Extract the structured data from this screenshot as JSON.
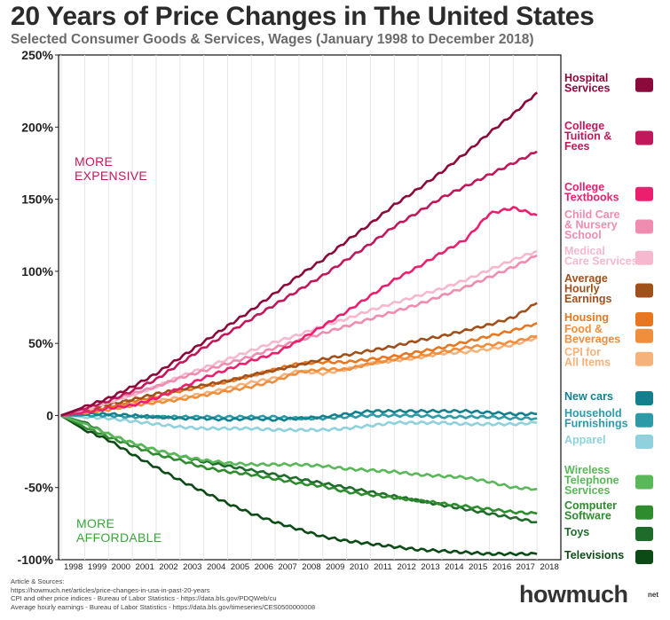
{
  "header": {
    "title": "20 Years of Price Changes in The United States",
    "subtitle": "Selected Consumer Goods & Services, Wages (January 1998 to December 2018)"
  },
  "footer": {
    "sources": [
      "Article & Sources:",
      "https://howmuch.net/articles/price-changes-in-usa-in-past-20-years",
      "CPI and other price indices - Bureau of Labor Statistics - https://data.bls.gov/PDQWeb/cu",
      "Average hourly earnings - Bureau of Labor Statistics - https://data.bls.gov/timeseries/CES0500000008"
    ],
    "logo": "howmuch",
    "logo_suffix": "net"
  },
  "chart_data": {
    "type": "line",
    "x": [
      1998,
      1999,
      2000,
      2001,
      2002,
      2003,
      2004,
      2005,
      2006,
      2007,
      2008,
      2009,
      2010,
      2011,
      2012,
      2013,
      2014,
      2015,
      2016,
      2017,
      2018
    ],
    "x_tick_labels": [
      "1998",
      "1999",
      "2000",
      "2001",
      "2002",
      "2003",
      "2004",
      "2005",
      "2006",
      "2007",
      "2008",
      "2009",
      "2010",
      "2011",
      "2012",
      "2013",
      "2014",
      "2015",
      "2016",
      "2017",
      "2018"
    ],
    "y_ticks": [
      {
        "value": 250,
        "label": "250%"
      },
      {
        "value": 200,
        "label": "200%"
      },
      {
        "value": 150,
        "label": "150%"
      },
      {
        "value": 100,
        "label": "100%"
      },
      {
        "value": 50,
        "label": "50%"
      },
      {
        "value": 0,
        "label": "0"
      },
      {
        "value": -50,
        "label": "-50%"
      },
      {
        "value": -100,
        "label": "-100%"
      }
    ],
    "ylim": [
      -100,
      250
    ],
    "xlim": [
      1997.9,
      2019.0
    ],
    "grid": "vertical",
    "annotations": [
      {
        "text": [
          "MORE",
          "EXPENSIVE"
        ],
        "color": "#c2185b"
      },
      {
        "text": [
          "MORE",
          "AFFORDABLE"
        ],
        "color": "#3aa53a"
      }
    ],
    "series": [
      {
        "name": "Hospital Services",
        "label_lines": [
          "Hospital",
          "Services"
        ],
        "icon": "heart-pulse-icon",
        "color": "#8b0a3c",
        "values": [
          0,
          6,
          12,
          20,
          29,
          40,
          51,
          62,
          73,
          85,
          97,
          108,
          121,
          133,
          146,
          157,
          169,
          182,
          196,
          209,
          224
        ]
      },
      {
        "name": "College Tuition & Fees",
        "label_lines": [
          "College",
          "Tuition &",
          "Fees"
        ],
        "icon": "graduation-cap-icon",
        "color": "#c2185b",
        "values": [
          0,
          5,
          10,
          17,
          25,
          36,
          47,
          57,
          67,
          77,
          87,
          97,
          108,
          119,
          131,
          141,
          151,
          159,
          167,
          175,
          183
        ]
      },
      {
        "name": "College Textbooks",
        "label_lines": [
          "College",
          "Textbooks"
        ],
        "icon": "books-icon",
        "color": "#ec1f6f",
        "values": [
          0,
          2,
          5,
          7,
          12,
          19,
          26,
          32,
          38,
          43,
          52,
          62,
          72,
          83,
          94,
          103,
          113,
          122,
          140,
          144,
          139
        ]
      },
      {
        "name": "Child Care & Nursery School",
        "label_lines": [
          "Child Care",
          "& Nursery",
          "School"
        ],
        "icon": "family-icon",
        "color": "#f08cb0",
        "values": [
          0,
          5,
          10,
          15,
          20,
          26,
          31,
          36,
          41,
          47,
          52,
          57,
          62,
          67,
          72,
          77,
          83,
          89,
          96,
          103,
          111
        ]
      },
      {
        "name": "Medical Care Services",
        "label_lines": [
          "Medical",
          "Care Services"
        ],
        "icon": "medical-plus-icon",
        "color": "#f6b8cf",
        "values": [
          0,
          4,
          9,
          14,
          20,
          27,
          33,
          39,
          45,
          51,
          56,
          62,
          67,
          73,
          78,
          83,
          88,
          94,
          101,
          108,
          114
        ]
      },
      {
        "name": "Average Hourly Earnings",
        "label_lines": [
          "Average",
          "Hourly",
          "Earnings"
        ],
        "icon": "clock-dollar-icon",
        "color": "#a0501a",
        "values": [
          0,
          3.5,
          7.5,
          11,
          15,
          18,
          21,
          24,
          28,
          31.5,
          35,
          39,
          42,
          45,
          48,
          52,
          55,
          59,
          63,
          68,
          78
        ]
      },
      {
        "name": "Housing",
        "label_lines": [
          "Housing"
        ],
        "icon": "house-icon",
        "color": "#e87722",
        "values": [
          0,
          2.5,
          6,
          10,
          13,
          17,
          20,
          23.5,
          27.5,
          32,
          36,
          37,
          37,
          39,
          41,
          44,
          47,
          51,
          55,
          59,
          64
        ]
      },
      {
        "name": "Food & Beverages",
        "label_lines": [
          "Food &",
          "Beverages"
        ],
        "icon": "food-icon",
        "color": "#f08e3c",
        "values": [
          0,
          2,
          4,
          7,
          9,
          11,
          14,
          17,
          20,
          24,
          30,
          32,
          32,
          36,
          39,
          41,
          44,
          47,
          49,
          51,
          55
        ]
      },
      {
        "name": "CPI for All Items",
        "label_lines": [
          "CPI for",
          "All Items"
        ],
        "icon": "price-tag-icon",
        "color": "#f5b27a",
        "values": [
          0,
          2,
          5,
          8,
          10,
          12.5,
          15,
          19,
          23,
          26,
          31,
          29,
          32,
          36,
          38,
          40,
          43,
          44,
          46,
          49,
          54
        ]
      },
      {
        "name": "New cars",
        "label_lines": [
          "New cars"
        ],
        "icon": "car-icon",
        "color": "#15808d",
        "values": [
          0,
          1,
          1,
          0,
          -1,
          -2,
          -2,
          -3,
          -2,
          -3,
          -2,
          -1,
          1,
          3,
          3,
          3,
          3,
          3,
          2,
          1,
          1
        ]
      },
      {
        "name": "Household Furnishings",
        "label_lines": [
          "Household",
          "Furnishings"
        ],
        "icon": "furniture-icon",
        "color": "#2d9aa8",
        "values": [
          0,
          0,
          0,
          -1,
          -1,
          -1,
          -1,
          -1,
          -1,
          -1,
          -2,
          -2,
          -1,
          0,
          0,
          0,
          -1,
          -1,
          -1,
          -2,
          -2
        ]
      },
      {
        "name": "Apparel",
        "label_lines": [
          "Apparel"
        ],
        "icon": "shirt-icon",
        "color": "#8fd1dc",
        "values": [
          0,
          -1,
          -2,
          -4,
          -6,
          -8,
          -9,
          -9,
          -9,
          -10,
          -10,
          -10,
          -9,
          -7,
          -5,
          -5,
          -5,
          -6,
          -6,
          -6,
          -5
        ]
      },
      {
        "name": "Wireless Telephone Services",
        "label_lines": [
          "Wireless",
          "Telephone",
          "Services"
        ],
        "icon": "phone-wifi-icon",
        "color": "#5ab75a",
        "values": [
          0,
          -6,
          -13,
          -19,
          -24,
          -28,
          -31,
          -33,
          -34,
          -34,
          -34,
          -35,
          -37,
          -38,
          -39,
          -41,
          -42,
          -43,
          -46,
          -50,
          -51
        ]
      },
      {
        "name": "Computer Software",
        "label_lines": [
          "Computer",
          "Software"
        ],
        "icon": "computer-icon",
        "color": "#2e8b2e",
        "values": [
          0,
          -8,
          -15,
          -21,
          -27,
          -31,
          -36,
          -39,
          -41,
          -44,
          -47,
          -49,
          -53,
          -55,
          -57,
          -59,
          -61,
          -63,
          -65,
          -67,
          -68
        ]
      },
      {
        "name": "Toys",
        "label_lines": [
          "Toys"
        ],
        "icon": "toys-icon",
        "color": "#1f6b2a",
        "values": [
          0,
          -5,
          -13,
          -19,
          -24,
          -28,
          -32,
          -35,
          -38,
          -41,
          -44,
          -47,
          -50,
          -53,
          -56,
          -59,
          -62,
          -65,
          -68,
          -71,
          -74
        ]
      },
      {
        "name": "Televisions",
        "label_lines": [
          "Televisions"
        ],
        "icon": "tv-icon",
        "color": "#0c4a16",
        "values": [
          0,
          -10,
          -17,
          -27,
          -36,
          -45,
          -53,
          -61,
          -68,
          -74,
          -79,
          -84,
          -87,
          -89,
          -91,
          -93,
          -94,
          -95,
          -96,
          -96,
          -96
        ]
      }
    ]
  }
}
